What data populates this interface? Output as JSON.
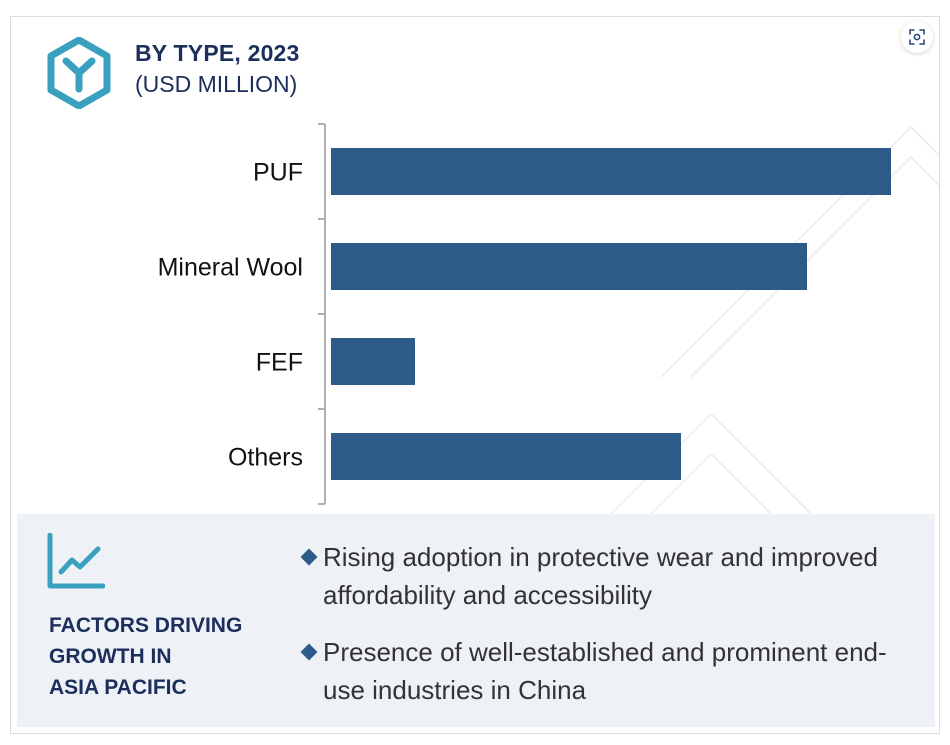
{
  "header": {
    "title": "BY TYPE, 2023",
    "subtitle": "(USD MILLION)"
  },
  "expand_icon": "fullscreen-focus-icon",
  "colors": {
    "bar": "#2c5b8a",
    "title": "#1c2e5b",
    "accent_icon": "#3aa0bf",
    "panel_bg": "#eef1f6",
    "bullet": "#2c5b8a"
  },
  "chart_data": {
    "type": "bar",
    "orientation": "horizontal",
    "title": "BY TYPE, 2023",
    "subtitle": "(USD MILLION)",
    "categories": [
      "PUF",
      "Mineral Wool",
      "FEF",
      "Others"
    ],
    "values": [
      100,
      85,
      15,
      62.5
    ],
    "xlim": [
      0,
      100
    ],
    "value_axis_shown": false,
    "grid": false,
    "legend": "none"
  },
  "factors": {
    "icon": "trend-line-chart-icon",
    "title_lines": [
      "FACTORS DRIVING",
      "GROWTH IN",
      "ASIA PACIFIC"
    ],
    "bullets": [
      "Rising adoption in protective wear and improved affordability and accessibility",
      "Presence of well-established and prominent end-use industries in China"
    ]
  }
}
